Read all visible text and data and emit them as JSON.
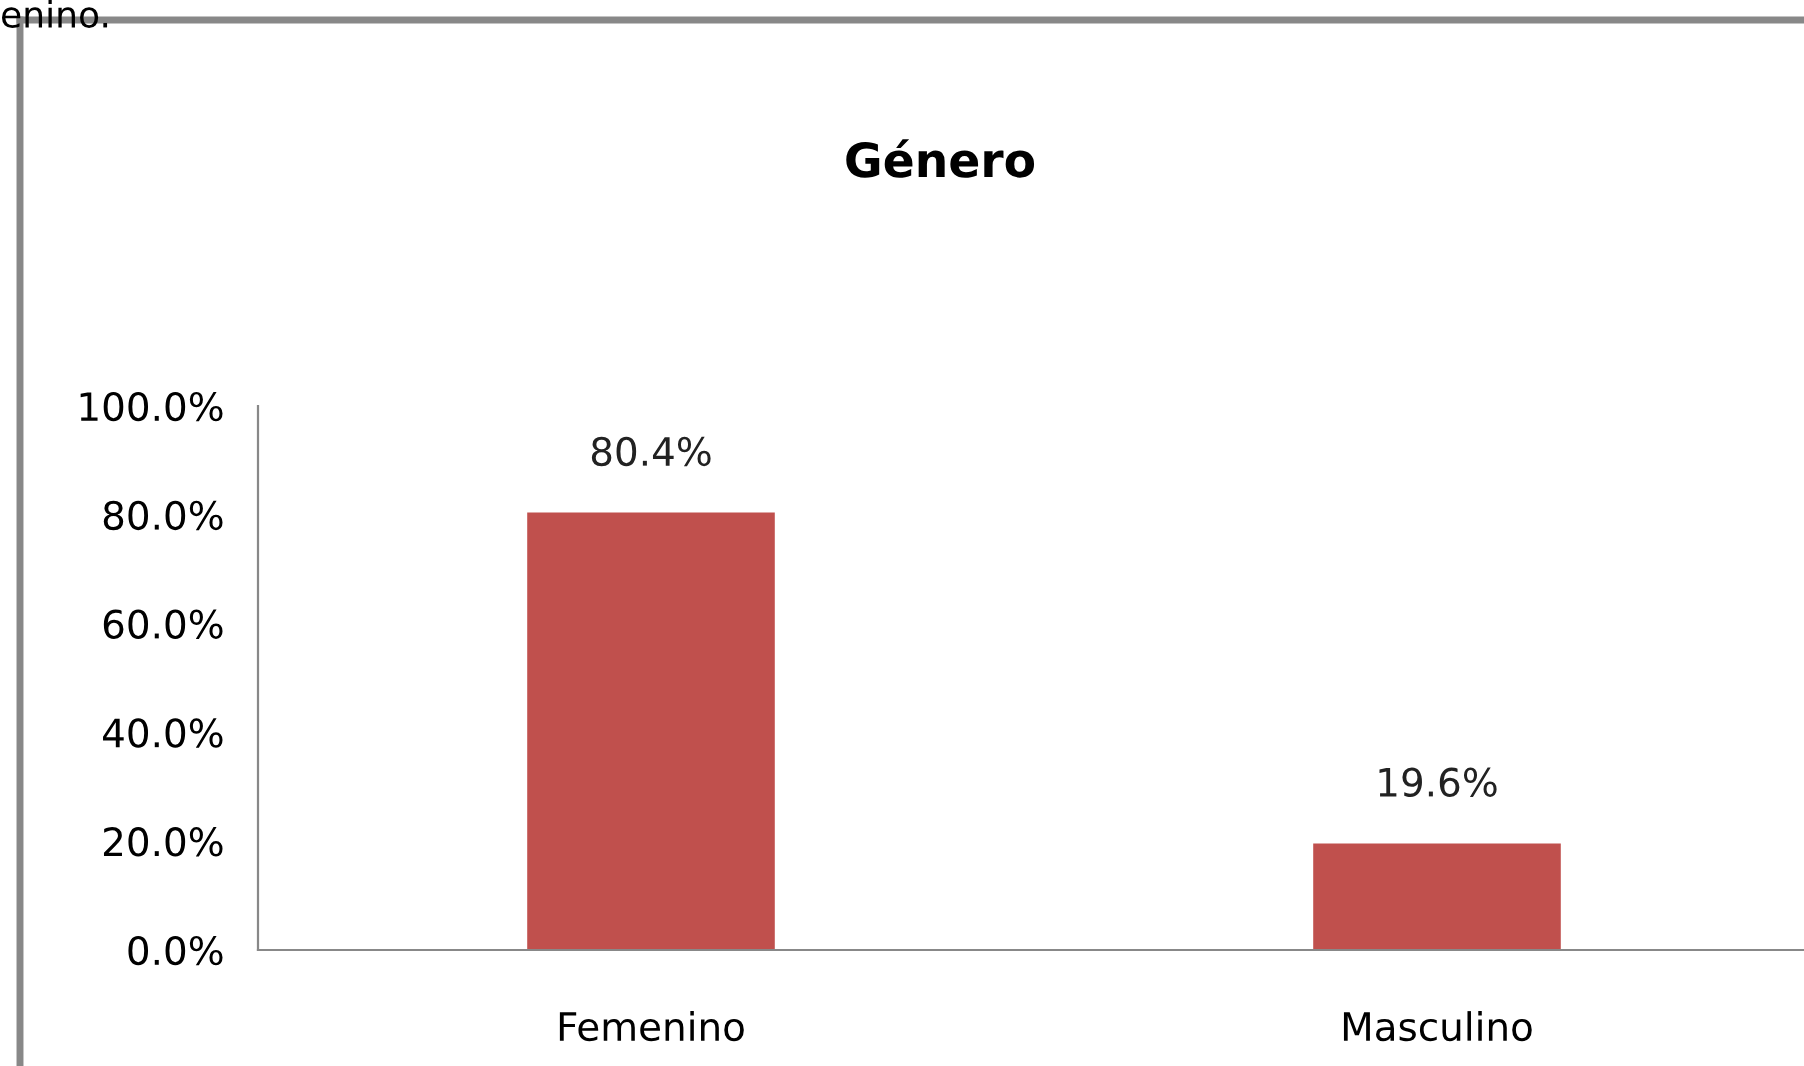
{
  "chart_data": {
    "type": "bar",
    "title": "Género",
    "categories": [
      "Femenino",
      "Masculino"
    ],
    "values": [
      80.4,
      19.6
    ],
    "color": "#c0504d",
    "value_labels": [
      "80.4%",
      "19.6%"
    ],
    "ylim": [
      0,
      100
    ],
    "yticks": [
      {
        "value": 0,
        "label": "0.0%"
      },
      {
        "value": 20,
        "label": "20.0%"
      },
      {
        "value": 40,
        "label": "40.0%"
      },
      {
        "value": 60,
        "label": "60.0%"
      },
      {
        "value": 80,
        "label": "80.0%"
      },
      {
        "value": 100,
        "label": "100.0%"
      }
    ],
    "annotations": [
      "enino."
    ],
    "grid": false,
    "legend": false
  }
}
